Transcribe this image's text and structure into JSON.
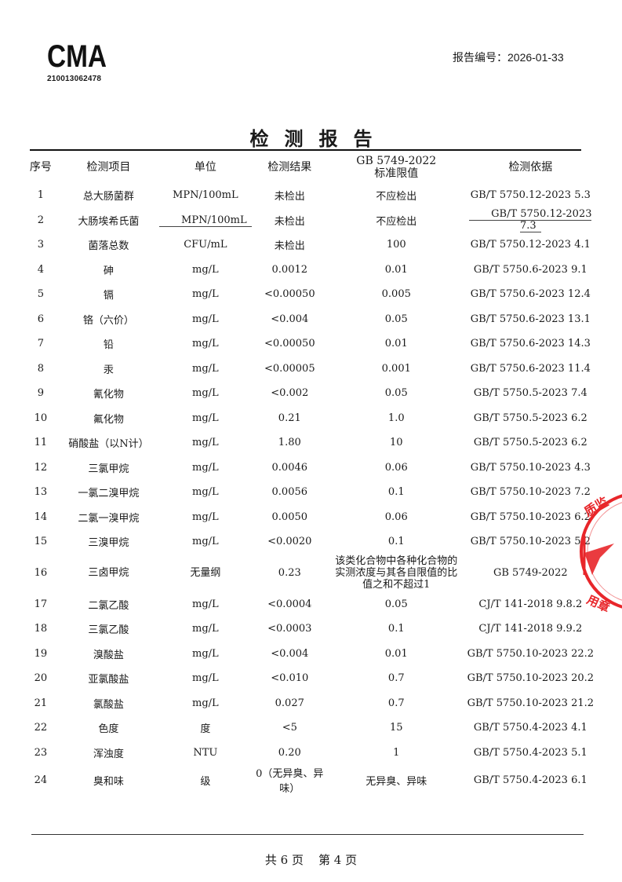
{
  "header": {
    "cma_logo_text": "CMA",
    "cma_number": "210013062478",
    "report_number_label": "报告编号：",
    "report_number": "2026-01-33"
  },
  "title": "检测报告",
  "table": {
    "columns": [
      "序号",
      "检测项目",
      "单位",
      "检测结果",
      "GB 5749-2022 标准限值",
      "检测依据"
    ],
    "limit_header_line1": "GB 5749-2022",
    "limit_header_line2": "标准限值",
    "rows": [
      {
        "no": "1",
        "item": "总大肠菌群",
        "unit": "MPN/100mL",
        "result": "未检出",
        "limit": "不应检出",
        "method": "GB/T 5750.12-2023 5.3"
      },
      {
        "no": "2",
        "item": "大肠埃希氏菌",
        "unit": "MPN/100mL",
        "result": "未检出",
        "limit": "不应检出",
        "method": "GB/T 5750.12-2023 7.3"
      },
      {
        "no": "3",
        "item": "菌落总数",
        "unit": "CFU/mL",
        "result": "未检出",
        "limit": "100",
        "method": "GB/T 5750.12-2023 4.1"
      },
      {
        "no": "4",
        "item": "砷",
        "unit": "mg/L",
        "result": "0.0012",
        "limit": "0.01",
        "method": "GB/T 5750.6-2023 9.1"
      },
      {
        "no": "5",
        "item": "镉",
        "unit": "mg/L",
        "result": "<0.00050",
        "limit": "0.005",
        "method": "GB/T 5750.6-2023 12.4"
      },
      {
        "no": "6",
        "item": "铬（六价）",
        "unit": "mg/L",
        "result": "<0.004",
        "limit": "0.05",
        "method": "GB/T 5750.6-2023 13.1"
      },
      {
        "no": "7",
        "item": "铅",
        "unit": "mg/L",
        "result": "<0.00050",
        "limit": "0.01",
        "method": "GB/T 5750.6-2023 14.3"
      },
      {
        "no": "8",
        "item": "汞",
        "unit": "mg/L",
        "result": "<0.00005",
        "limit": "0.001",
        "method": "GB/T 5750.6-2023 11.4"
      },
      {
        "no": "9",
        "item": "氰化物",
        "unit": "mg/L",
        "result": "<0.002",
        "limit": "0.05",
        "method": "GB/T 5750.5-2023 7.4"
      },
      {
        "no": "10",
        "item": "氟化物",
        "unit": "mg/L",
        "result": "0.21",
        "limit": "1.0",
        "method": "GB/T 5750.5-2023 6.2"
      },
      {
        "no": "11",
        "item": "硝酸盐（以N计）",
        "unit": "mg/L",
        "result": "1.80",
        "limit": "10",
        "method": "GB/T 5750.5-2023 6.2"
      },
      {
        "no": "12",
        "item": "三氯甲烷",
        "unit": "mg/L",
        "result": "0.0046",
        "limit": "0.06",
        "method": "GB/T 5750.10-2023 4.3"
      },
      {
        "no": "13",
        "item": "一氯二溴甲烷",
        "unit": "mg/L",
        "result": "0.0056",
        "limit": "0.1",
        "method": "GB/T 5750.10-2023 7.2"
      },
      {
        "no": "14",
        "item": "二氯一溴甲烷",
        "unit": "mg/L",
        "result": "0.0050",
        "limit": "0.06",
        "method": "GB/T 5750.10-2023 6.2"
      },
      {
        "no": "15",
        "item": "三溴甲烷",
        "unit": "mg/L",
        "result": "<0.0020",
        "limit": "0.1",
        "method": "GB/T 5750.10-2023 5.2"
      },
      {
        "no": "16",
        "item": "三卤甲烷",
        "unit": "无量纲",
        "result": "0.23",
        "limit": "该类化合物中各种化合物的实测浓度与其各自限值的比值之和不超过1",
        "method": "GB 5749-2022"
      },
      {
        "no": "17",
        "item": "二氯乙酸",
        "unit": "mg/L",
        "result": "<0.0004",
        "limit": "0.05",
        "method": "CJ/T 141-2018 9.8.2"
      },
      {
        "no": "18",
        "item": "三氯乙酸",
        "unit": "mg/L",
        "result": "<0.0003",
        "limit": "0.1",
        "method": "CJ/T 141-2018 9.9.2"
      },
      {
        "no": "19",
        "item": "溴酸盐",
        "unit": "mg/L",
        "result": "<0.004",
        "limit": "0.01",
        "method": "GB/T 5750.10-2023 22.2"
      },
      {
        "no": "20",
        "item": "亚氯酸盐",
        "unit": "mg/L",
        "result": "<0.010",
        "limit": "0.7",
        "method": "GB/T 5750.10-2023 20.2"
      },
      {
        "no": "21",
        "item": "氯酸盐",
        "unit": "mg/L",
        "result": "0.027",
        "limit": "0.7",
        "method": "GB/T 5750.10-2023 21.2"
      },
      {
        "no": "22",
        "item": "色度",
        "unit": "度",
        "result": "<5",
        "limit": "15",
        "method": "GB/T 5750.4-2023 4.1"
      },
      {
        "no": "23",
        "item": "浑浊度",
        "unit": "NTU",
        "result": "0.20",
        "limit": "1",
        "method": "GB/T 5750.4-2023 5.1"
      },
      {
        "no": "24",
        "item": "臭和味",
        "unit": "级",
        "result": "0（无异臭、异味）",
        "limit": "无异臭、异味",
        "method": "GB/T 5750.4-2023 6.1"
      }
    ]
  },
  "footer": {
    "total_pages_text": "共 6 页",
    "current_page_text": "第 4 页"
  },
  "stamp": {
    "color": "#e8262a",
    "visible_text": "质监…用章"
  }
}
